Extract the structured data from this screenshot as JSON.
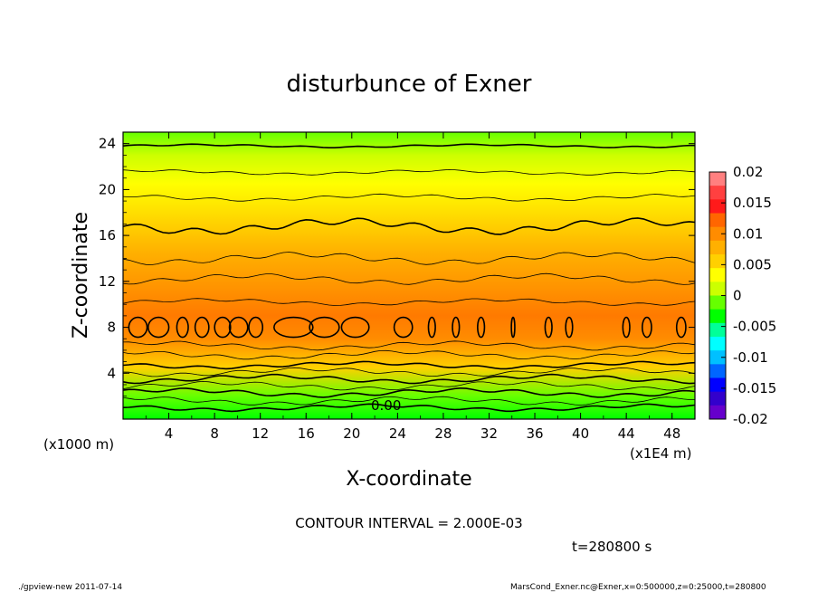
{
  "chart_data": {
    "type": "heatmap",
    "title": "disturbunce of Exner",
    "xlabel": "X-coordinate",
    "ylabel": "Z-coordinate",
    "x_unit_label": "(x1E4 m)",
    "y_unit_label": "(x1000 m)",
    "xlim": [
      0,
      50
    ],
    "ylim": [
      0,
      25
    ],
    "x_ticks": [
      "4",
      "8",
      "12",
      "16",
      "20",
      "24",
      "28",
      "32",
      "36",
      "40",
      "44",
      "48"
    ],
    "y_ticks": [
      "4",
      "8",
      "12",
      "16",
      "20",
      "24"
    ],
    "colorbar": {
      "min": -0.02,
      "max": 0.02,
      "ticks": [
        "0.02",
        "0.015",
        "0.01",
        "0.005",
        "0",
        "-0.005",
        "-0.01",
        "-0.015",
        "-0.02"
      ],
      "colors": [
        "#ff8080",
        "#ff4040",
        "#ff1a1a",
        "#ff6600",
        "#ff8c00",
        "#ffb000",
        "#ffd000",
        "#ffff00",
        "#ccff00",
        "#66ff00",
        "#00ff00",
        "#00ff99",
        "#00ffff",
        "#00c0ff",
        "#0066ff",
        "#0000ff",
        "#3300cc",
        "#6600cc"
      ]
    },
    "contour_interval": "CONTOUR INTERVAL = 2.000E-03",
    "contour_label": "0.00",
    "time_label": "t=280800 s",
    "profile": {
      "z": [
        0,
        2,
        4,
        6,
        8,
        10,
        12,
        14,
        16,
        18,
        20,
        22,
        24,
        25
      ],
      "value": [
        0.0,
        0.001,
        0.004,
        0.009,
        0.011,
        0.01,
        0.009,
        0.008,
        0.007,
        0.006,
        0.005,
        0.004,
        0.002,
        0.001
      ]
    }
  },
  "footer": {
    "left": "./gpview-new   2011-07-14",
    "right": "MarsCond_Exner.nc@Exner,x=0:500000,z=0:25000,t=280800"
  }
}
